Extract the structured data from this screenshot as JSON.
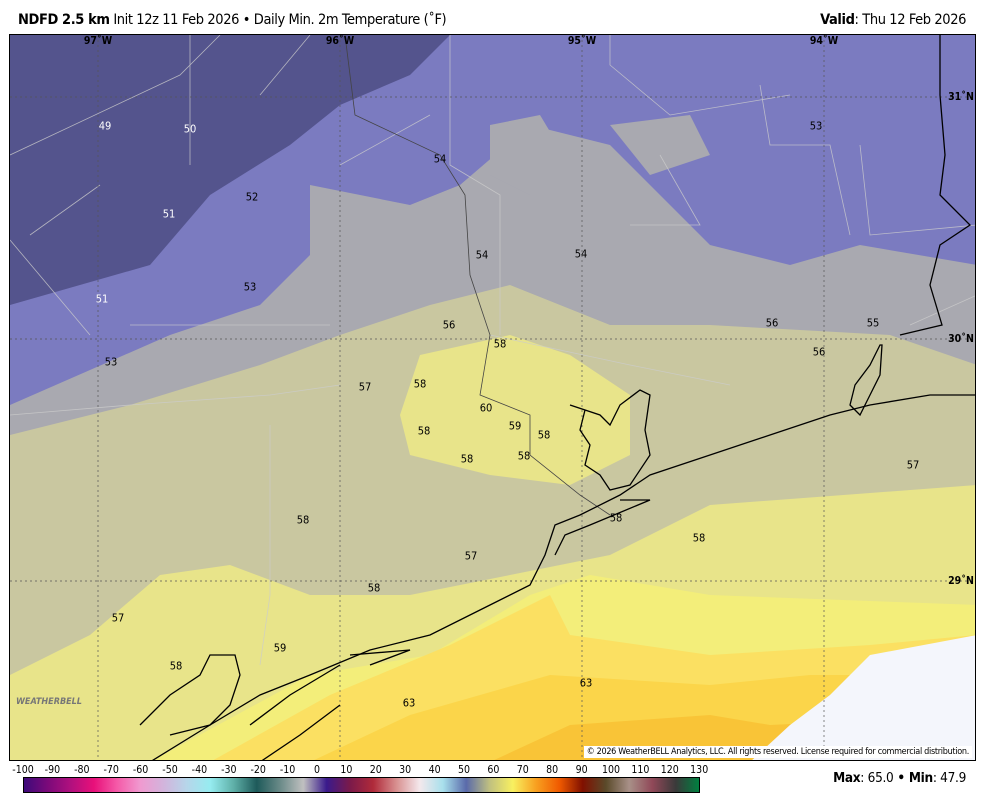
{
  "header": {
    "model": "NDFD 2.5 km",
    "init": "Init 12z 11 Feb 2026",
    "separator": "•",
    "product": "Daily Min. 2m Temperature (˚F)",
    "valid_label": "Valid",
    "valid_value": ": Thu 12 Feb 2026"
  },
  "map": {
    "longitude_labels": [
      "97˚W",
      "96˚W",
      "95˚W",
      "94˚W"
    ],
    "latitude_labels": [
      "31˚N",
      "30˚N",
      "29˚N"
    ],
    "temperature_labels": [
      "49",
      "50",
      "52",
      "51",
      "54",
      "53",
      "54",
      "54",
      "53",
      "51",
      "56",
      "58",
      "56",
      "55",
      "56",
      "53",
      "57",
      "58",
      "60",
      "59",
      "58",
      "58",
      "58",
      "58",
      "57",
      "58",
      "58",
      "58",
      "57",
      "58",
      "57",
      "59",
      "58",
      "63",
      "63"
    ],
    "colors": {
      "coldest": "#4a4a82",
      "cool": "#7b7bc0",
      "neutral": "#a9a9b0",
      "mild": "#c9c7a0",
      "warm": "#e8e48a",
      "warmer": "#f3ee7a",
      "hot": "#fbd54a",
      "nodata": "#f4f6fc"
    }
  },
  "logo_text": "WeatherBELL",
  "copyright": "© 2026 WeatherBELL Analytics, LLC. All rights reserved. License required for commercial distribution.",
  "colorbar": {
    "ticks": [
      "-100",
      "-90",
      "-80",
      "-70",
      "-60",
      "-50",
      "-40",
      "-30",
      "-20",
      "-10",
      "0",
      "10",
      "20",
      "30",
      "40",
      "50",
      "60",
      "70",
      "80",
      "90",
      "100",
      "110",
      "120",
      "130"
    ]
  },
  "stats": {
    "max_label": "Max",
    "max_value": ": 65.0",
    "sep": " • ",
    "min_label": "Min",
    "min_value": ": 47.9"
  }
}
